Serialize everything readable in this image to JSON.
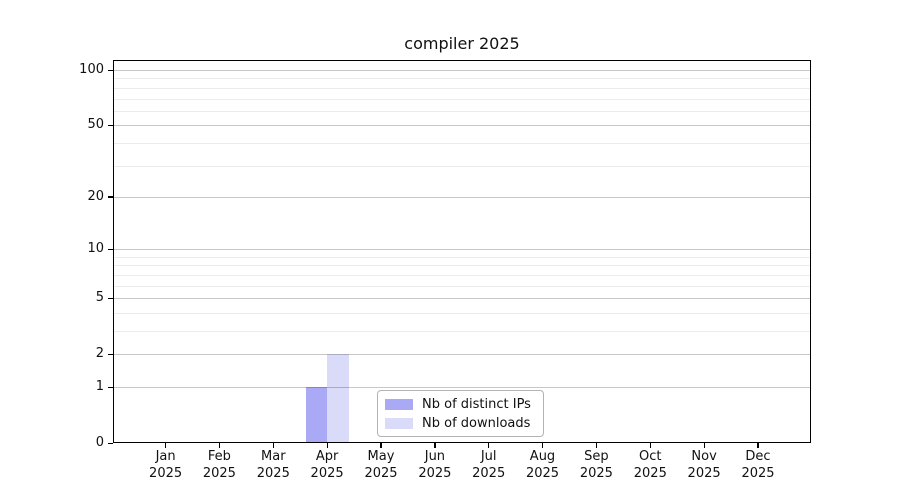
{
  "chart_data": {
    "type": "bar",
    "title": "compiler 2025",
    "categories": [
      "Jan 2025",
      "Feb 2025",
      "Mar 2025",
      "Apr 2025",
      "May 2025",
      "Jun 2025",
      "Jul 2025",
      "Aug 2025",
      "Sep 2025",
      "Oct 2025",
      "Nov 2025",
      "Dec 2025"
    ],
    "series": [
      {
        "name": "Nb of distinct IPs",
        "color": "#a9a9f5",
        "values": [
          0,
          0,
          0,
          1,
          0,
          0,
          0,
          0,
          0,
          0,
          0,
          0
        ]
      },
      {
        "name": "Nb of downloads",
        "color": "#dadaf9",
        "values": [
          0,
          0,
          0,
          2,
          0,
          0,
          0,
          0,
          0,
          0,
          0,
          0
        ]
      }
    ],
    "xlabel": "",
    "ylabel": "",
    "y_axis": {
      "scale": "log10(1+v)",
      "ticks": [
        0,
        1,
        2,
        5,
        10,
        20,
        50,
        100
      ],
      "minor_ticks": [
        3,
        4,
        6,
        7,
        8,
        9,
        30,
        40,
        60,
        70,
        80,
        90
      ],
      "ylim_max_approx": 113
    },
    "grid": "horizontal",
    "legend": {
      "position": "lower-center",
      "entries": [
        "Nb of distinct IPs",
        "Nb of downloads"
      ]
    },
    "colors": {
      "spine": "#000000",
      "major_grid": "#c7c7c7",
      "minor_grid": "#ececec",
      "legend_border": "#b3b3b3",
      "text": "#111111"
    }
  }
}
